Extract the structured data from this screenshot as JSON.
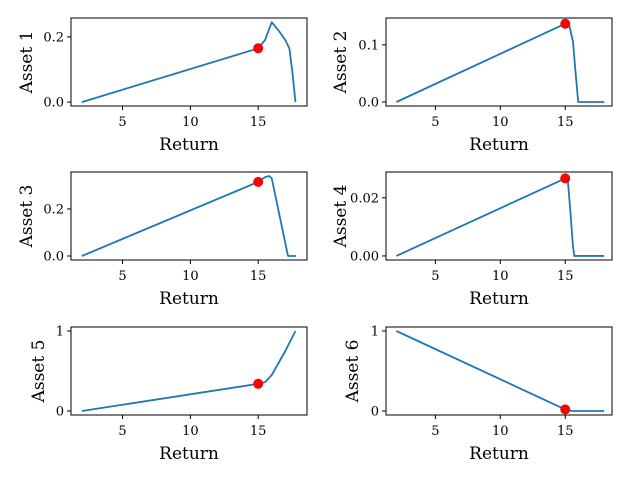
{
  "chart_data": [
    {
      "type": "line",
      "xlabel": "Return",
      "ylabel": "Asset 1",
      "xlim": [
        1.2,
        18.6
      ],
      "ylim": [
        -0.012,
        0.258
      ],
      "xticks": [
        5,
        10,
        15
      ],
      "yticks": [
        0.0,
        0.2
      ],
      "ytick_labels": [
        "0.0",
        "0.2"
      ],
      "series": [
        {
          "color": "#1f77b4",
          "x": [
            2.0,
            15.0,
            15.5,
            16.0,
            16.5,
            17.0,
            17.3,
            17.5,
            17.75
          ],
          "y": [
            0.0,
            0.165,
            0.19,
            0.245,
            0.22,
            0.19,
            0.165,
            0.1,
            0.0
          ]
        }
      ],
      "highlight_point": {
        "x": 15.0,
        "y": 0.165,
        "color": "#ff0000"
      }
    },
    {
      "type": "line",
      "xlabel": "Return",
      "ylabel": "Asset 2",
      "xlim": [
        1.2,
        18.6
      ],
      "ylim": [
        -0.007,
        0.147
      ],
      "xticks": [
        5,
        10,
        15
      ],
      "yticks": [
        0.0,
        0.1
      ],
      "ytick_labels": [
        "0.0",
        "0.1"
      ],
      "series": [
        {
          "color": "#1f77b4",
          "x": [
            2.0,
            15.0,
            15.3,
            15.6,
            15.8,
            16.0,
            17.0,
            18.0
          ],
          "y": [
            0.0,
            0.137,
            0.135,
            0.105,
            0.05,
            0.0,
            0.0,
            0.0
          ]
        }
      ],
      "highlight_point": {
        "x": 15.0,
        "y": 0.137,
        "color": "#ff0000"
      }
    },
    {
      "type": "line",
      "xlabel": "Return",
      "ylabel": "Asset 3",
      "xlim": [
        1.2,
        18.6
      ],
      "ylim": [
        -0.017,
        0.357
      ],
      "xticks": [
        5,
        10,
        15
      ],
      "yticks": [
        0.0,
        0.2
      ],
      "ytick_labels": [
        "0.0",
        "0.2"
      ],
      "series": [
        {
          "color": "#1f77b4",
          "x": [
            2.0,
            15.0,
            15.5,
            15.8,
            16.0,
            17.2,
            17.4,
            17.8
          ],
          "y": [
            0.0,
            0.315,
            0.335,
            0.34,
            0.33,
            0.0,
            0.0,
            0.0
          ]
        }
      ],
      "highlight_point": {
        "x": 15.0,
        "y": 0.315,
        "color": "#ff0000"
      }
    },
    {
      "type": "line",
      "xlabel": "Return",
      "ylabel": "Asset 4",
      "xlim": [
        1.2,
        18.6
      ],
      "ylim": [
        -0.0014,
        0.0289
      ],
      "xticks": [
        5,
        10,
        15
      ],
      "yticks": [
        0.0,
        0.02
      ],
      "ytick_labels": [
        "0.00",
        "0.02"
      ],
      "series": [
        {
          "color": "#1f77b4",
          "x": [
            2.0,
            15.0,
            15.2,
            15.4,
            15.6,
            15.7,
            16.0,
            18.0
          ],
          "y": [
            0.0,
            0.0267,
            0.026,
            0.015,
            0.003,
            0.0,
            0.0,
            0.0
          ]
        }
      ],
      "highlight_point": {
        "x": 15.0,
        "y": 0.0267,
        "color": "#ff0000"
      }
    },
    {
      "type": "line",
      "xlabel": "Return",
      "ylabel": "Asset 5",
      "xlim": [
        1.2,
        18.6
      ],
      "ylim": [
        -0.05,
        1.05
      ],
      "xticks": [
        5,
        10,
        15
      ],
      "yticks": [
        0,
        1
      ],
      "ytick_labels": [
        "0",
        "1"
      ],
      "series": [
        {
          "color": "#1f77b4",
          "x": [
            2.0,
            15.0,
            15.5,
            16.0,
            16.5,
            17.0,
            17.75
          ],
          "y": [
            0.0,
            0.34,
            0.36,
            0.45,
            0.6,
            0.75,
            1.0
          ]
        }
      ],
      "highlight_point": {
        "x": 15.0,
        "y": 0.34,
        "color": "#ff0000"
      }
    },
    {
      "type": "line",
      "xlabel": "Return",
      "ylabel": "Asset 6",
      "xlim": [
        1.2,
        18.6
      ],
      "ylim": [
        -0.05,
        1.05
      ],
      "xticks": [
        5,
        10,
        15
      ],
      "yticks": [
        0,
        1
      ],
      "ytick_labels": [
        "0",
        "1"
      ],
      "series": [
        {
          "color": "#1f77b4",
          "x": [
            2.0,
            15.0,
            15.5,
            16.0,
            17.0,
            18.0
          ],
          "y": [
            1.0,
            0.02,
            0.0,
            0.0,
            0.0,
            0.0
          ]
        }
      ],
      "highlight_point": {
        "x": 15.0,
        "y": 0.02,
        "color": "#ff0000"
      }
    }
  ]
}
